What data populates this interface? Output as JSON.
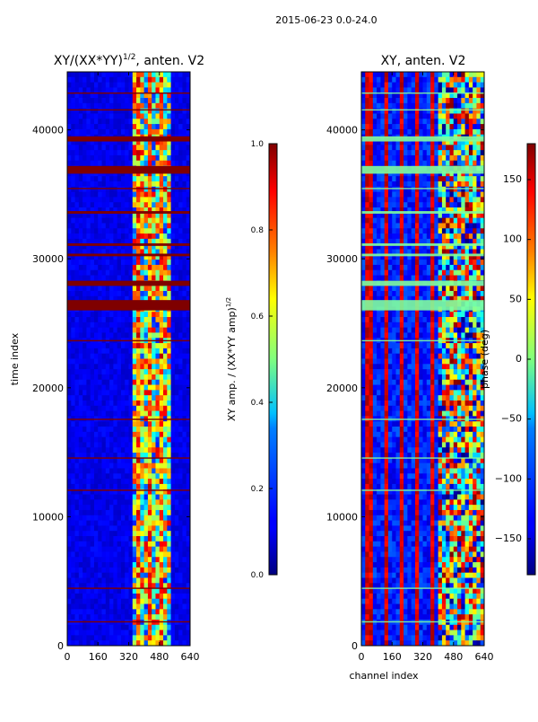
{
  "figure": {
    "suptitle": "2015-06-23 0.0-24.0"
  },
  "chart_data": [
    {
      "type": "heatmap",
      "title_main": "XY/(XX*YY)",
      "title_sup": "1/2",
      "title_rest": ", anten. V2",
      "xlabel": "",
      "ylabel": "time index",
      "xlim": [
        0,
        640
      ],
      "ylim": [
        0,
        44500
      ],
      "xticks": [
        0,
        160,
        320,
        480,
        640
      ],
      "yticks": [
        0,
        10000,
        20000,
        30000,
        40000
      ],
      "colorbar": {
        "label": "XY amp. / (XX*YY amp)",
        "label_sup": "1/2",
        "range": [
          0.0,
          1.0
        ],
        "ticks": [
          "0.0",
          "0.2",
          "0.4",
          "0.6",
          "0.8",
          "1.0"
        ]
      },
      "saturated_rows": [
        [
          26000,
          26800
        ],
        [
          27900,
          28300
        ],
        [
          36600,
          37200
        ],
        [
          39100,
          39500
        ],
        [
          1800,
          1900
        ],
        [
          4400,
          4500
        ],
        [
          12000,
          12100
        ],
        [
          14500,
          14600
        ],
        [
          17500,
          17600
        ],
        [
          23600,
          23700
        ],
        [
          30200,
          30400
        ],
        [
          31000,
          31200
        ],
        [
          33500,
          33700
        ],
        [
          35400,
          35500
        ],
        [
          41500,
          41600
        ],
        [
          42800,
          42900
        ]
      ],
      "active_channel_range": [
        350,
        540
      ]
    },
    {
      "type": "heatmap",
      "title": "XY, anten. V2",
      "xlabel": "channel index",
      "ylabel": "",
      "xlim": [
        0,
        640
      ],
      "ylim": [
        0,
        44500
      ],
      "xticks": [
        0,
        160,
        320,
        480,
        640
      ],
      "yticks": [
        0,
        10000,
        20000,
        30000,
        40000
      ],
      "colorbar": {
        "label": "phase (deg)",
        "range": [
          -180,
          180
        ],
        "ticks": [
          "150",
          "100",
          "50",
          "0",
          "−50",
          "−100",
          "−150"
        ]
      },
      "stripe_channels": [
        40,
        130,
        210,
        290,
        370
      ]
    }
  ]
}
